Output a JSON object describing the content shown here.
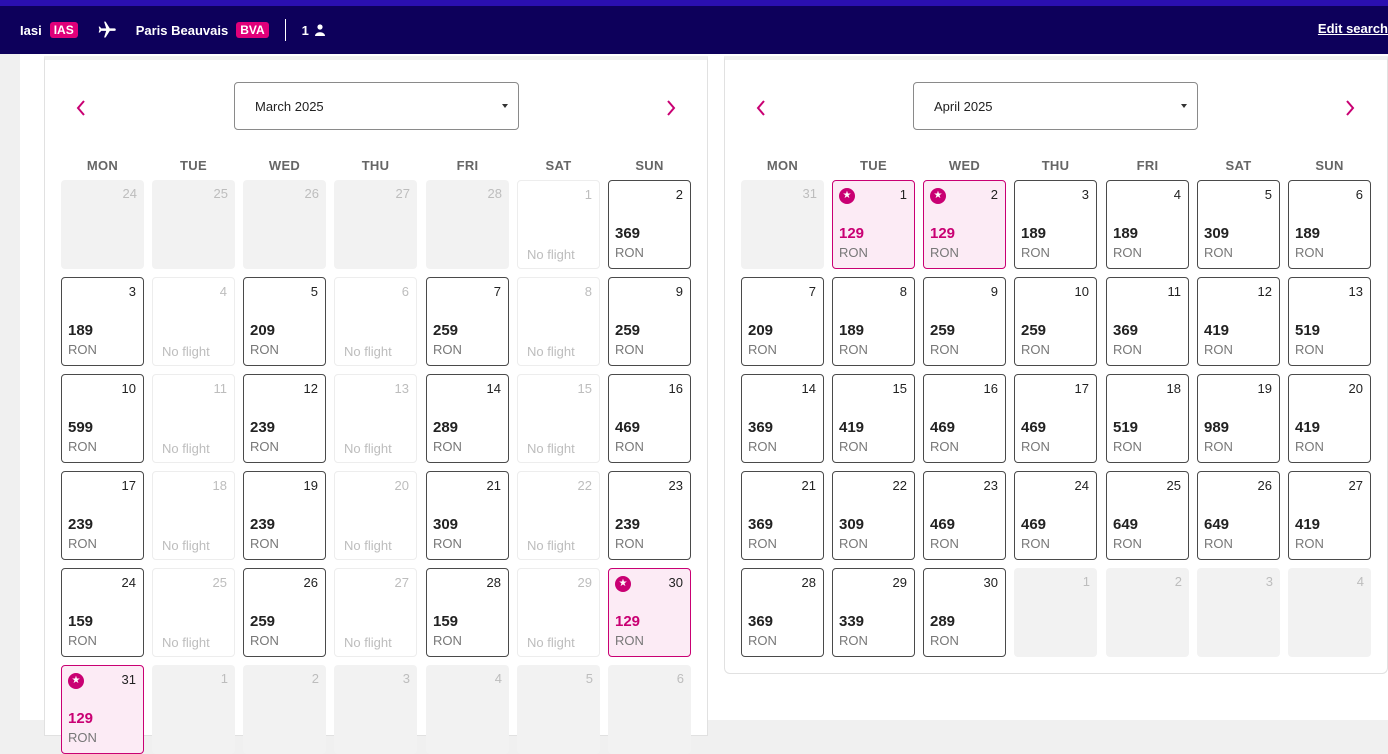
{
  "header": {
    "origin_city": "Iasi",
    "origin_code": "IAS",
    "destination_city": "Paris Beauvais",
    "destination_code": "BVA",
    "passengers": "1",
    "edit_search_label": "Edit search"
  },
  "colors": {
    "header_bg": "#0d005b",
    "accent": "#c90073",
    "badge": "#e0007a",
    "cheapest_bg": "#fcebf5"
  },
  "weekdays": [
    "MON",
    "TUE",
    "WED",
    "THU",
    "FRI",
    "SAT",
    "SUN"
  ],
  "icons": {
    "prev": "chevron-left-icon",
    "next": "chevron-right-icon",
    "plane": "plane-icon",
    "passenger": "person-icon",
    "cheapest": "star-badge-icon"
  },
  "calendars": [
    {
      "month_label": "March 2025",
      "currency": "RON",
      "no_flight_label": "No flight",
      "days": [
        {
          "d": "24",
          "s": "out"
        },
        {
          "d": "25",
          "s": "out"
        },
        {
          "d": "26",
          "s": "out"
        },
        {
          "d": "27",
          "s": "out"
        },
        {
          "d": "28",
          "s": "out"
        },
        {
          "d": "1",
          "s": "nofl"
        },
        {
          "d": "2",
          "s": "avail",
          "p": "369"
        },
        {
          "d": "3",
          "s": "avail",
          "p": "189"
        },
        {
          "d": "4",
          "s": "nofl"
        },
        {
          "d": "5",
          "s": "avail",
          "p": "209"
        },
        {
          "d": "6",
          "s": "nofl"
        },
        {
          "d": "7",
          "s": "avail",
          "p": "259"
        },
        {
          "d": "8",
          "s": "nofl"
        },
        {
          "d": "9",
          "s": "avail",
          "p": "259"
        },
        {
          "d": "10",
          "s": "avail",
          "p": "599"
        },
        {
          "d": "11",
          "s": "nofl"
        },
        {
          "d": "12",
          "s": "avail",
          "p": "239"
        },
        {
          "d": "13",
          "s": "nofl"
        },
        {
          "d": "14",
          "s": "avail",
          "p": "289"
        },
        {
          "d": "15",
          "s": "nofl"
        },
        {
          "d": "16",
          "s": "avail",
          "p": "469"
        },
        {
          "d": "17",
          "s": "avail",
          "p": "239"
        },
        {
          "d": "18",
          "s": "nofl"
        },
        {
          "d": "19",
          "s": "avail",
          "p": "239"
        },
        {
          "d": "20",
          "s": "nofl"
        },
        {
          "d": "21",
          "s": "avail",
          "p": "309"
        },
        {
          "d": "22",
          "s": "nofl"
        },
        {
          "d": "23",
          "s": "avail",
          "p": "239"
        },
        {
          "d": "24",
          "s": "avail",
          "p": "159"
        },
        {
          "d": "25",
          "s": "nofl"
        },
        {
          "d": "26",
          "s": "avail",
          "p": "259"
        },
        {
          "d": "27",
          "s": "nofl"
        },
        {
          "d": "28",
          "s": "avail",
          "p": "159"
        },
        {
          "d": "29",
          "s": "nofl"
        },
        {
          "d": "30",
          "s": "cheap",
          "p": "129"
        },
        {
          "d": "31",
          "s": "cheap",
          "p": "129"
        },
        {
          "d": "1",
          "s": "out"
        },
        {
          "d": "2",
          "s": "out"
        },
        {
          "d": "3",
          "s": "out"
        },
        {
          "d": "4",
          "s": "out"
        },
        {
          "d": "5",
          "s": "out"
        },
        {
          "d": "6",
          "s": "out"
        }
      ]
    },
    {
      "month_label": "April 2025",
      "currency": "RON",
      "no_flight_label": "No flight",
      "days": [
        {
          "d": "31",
          "s": "out"
        },
        {
          "d": "1",
          "s": "cheap",
          "p": "129"
        },
        {
          "d": "2",
          "s": "cheap",
          "p": "129"
        },
        {
          "d": "3",
          "s": "avail",
          "p": "189"
        },
        {
          "d": "4",
          "s": "avail",
          "p": "189"
        },
        {
          "d": "5",
          "s": "avail",
          "p": "309"
        },
        {
          "d": "6",
          "s": "avail",
          "p": "189"
        },
        {
          "d": "7",
          "s": "avail",
          "p": "209"
        },
        {
          "d": "8",
          "s": "avail",
          "p": "189"
        },
        {
          "d": "9",
          "s": "avail",
          "p": "259"
        },
        {
          "d": "10",
          "s": "avail",
          "p": "259"
        },
        {
          "d": "11",
          "s": "avail",
          "p": "369"
        },
        {
          "d": "12",
          "s": "avail",
          "p": "419"
        },
        {
          "d": "13",
          "s": "avail",
          "p": "519"
        },
        {
          "d": "14",
          "s": "avail",
          "p": "369"
        },
        {
          "d": "15",
          "s": "avail",
          "p": "419"
        },
        {
          "d": "16",
          "s": "avail",
          "p": "469"
        },
        {
          "d": "17",
          "s": "avail",
          "p": "469"
        },
        {
          "d": "18",
          "s": "avail",
          "p": "519"
        },
        {
          "d": "19",
          "s": "avail",
          "p": "989"
        },
        {
          "d": "20",
          "s": "avail",
          "p": "419"
        },
        {
          "d": "21",
          "s": "avail",
          "p": "369"
        },
        {
          "d": "22",
          "s": "avail",
          "p": "309"
        },
        {
          "d": "23",
          "s": "avail",
          "p": "469"
        },
        {
          "d": "24",
          "s": "avail",
          "p": "469"
        },
        {
          "d": "25",
          "s": "avail",
          "p": "649"
        },
        {
          "d": "26",
          "s": "avail",
          "p": "649"
        },
        {
          "d": "27",
          "s": "avail",
          "p": "419"
        },
        {
          "d": "28",
          "s": "avail",
          "p": "369"
        },
        {
          "d": "29",
          "s": "avail",
          "p": "339"
        },
        {
          "d": "30",
          "s": "avail",
          "p": "289"
        },
        {
          "d": "1",
          "s": "out"
        },
        {
          "d": "2",
          "s": "out"
        },
        {
          "d": "3",
          "s": "out"
        },
        {
          "d": "4",
          "s": "out"
        }
      ]
    }
  ]
}
